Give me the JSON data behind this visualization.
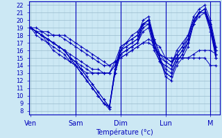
{
  "xlabel": "Température (°c)",
  "bg_color": "#cce8f4",
  "line_color": "#0000bb",
  "grid_major_color": "#99bbcc",
  "grid_minor_color": "#aaccdd",
  "ylim": [
    7.5,
    22.5
  ],
  "yticks": [
    8,
    9,
    10,
    11,
    12,
    13,
    14,
    15,
    16,
    17,
    18,
    19,
    20,
    21,
    22
  ],
  "day_labels": [
    "Ven",
    "Sam",
    "Dim",
    "Lun",
    "M"
  ],
  "day_positions": [
    0,
    24,
    48,
    72,
    96
  ],
  "xlim": [
    -1,
    101
  ],
  "series": [
    {
      "x": [
        0,
        3,
        6,
        9,
        12,
        15,
        18,
        21,
        24,
        27,
        30,
        33,
        36,
        39,
        42,
        45,
        48,
        51,
        54,
        57,
        60,
        63,
        66,
        69,
        72,
        75,
        78,
        81,
        84,
        87,
        90,
        93,
        96,
        99
      ],
      "y": [
        19,
        18.5,
        18,
        17.5,
        17,
        16.5,
        16,
        15,
        14,
        13,
        12,
        11,
        10,
        9,
        8.2,
        13,
        15.5,
        16,
        16.5,
        17,
        19.5,
        20,
        17,
        15,
        13.5,
        13,
        15,
        16,
        17.5,
        20,
        21,
        21.5,
        19,
        15.5
      ]
    },
    {
      "x": [
        0,
        3,
        6,
        9,
        12,
        15,
        18,
        21,
        24,
        27,
        30,
        33,
        36,
        39,
        42,
        45,
        48,
        51,
        54,
        57,
        60,
        63,
        66,
        69,
        72,
        75,
        78,
        81,
        84,
        87,
        90,
        93,
        96,
        99
      ],
      "y": [
        19,
        18.5,
        18,
        17.5,
        17,
        16.5,
        16,
        15,
        14.5,
        13.5,
        12.5,
        11.5,
        10.5,
        9.5,
        8.5,
        13,
        15.5,
        16,
        16.5,
        17,
        19,
        19.5,
        16.5,
        14.5,
        13,
        12.5,
        14.5,
        15.5,
        17,
        19.5,
        20.5,
        21,
        18.5,
        15
      ]
    },
    {
      "x": [
        0,
        3,
        6,
        9,
        12,
        15,
        18,
        21,
        24,
        27,
        30,
        33,
        36,
        39,
        42,
        45,
        48,
        51,
        54,
        57,
        60,
        63,
        66,
        69,
        72,
        75,
        78,
        81,
        84,
        87,
        90,
        93,
        96,
        99
      ],
      "y": [
        19,
        18,
        17.5,
        17,
        16.5,
        16,
        15.5,
        14.5,
        14,
        13,
        12,
        11,
        10,
        9,
        8.5,
        13.5,
        16,
        16.5,
        17,
        17.5,
        19.5,
        20,
        17,
        15,
        13,
        12.5,
        14.5,
        15.5,
        17,
        19.5,
        21,
        21,
        19,
        15.5
      ]
    },
    {
      "x": [
        0,
        3,
        6,
        9,
        12,
        15,
        18,
        21,
        24,
        27,
        30,
        33,
        36,
        39,
        42,
        45,
        48,
        51,
        54,
        57,
        60,
        63,
        66,
        69,
        72,
        75,
        78,
        81,
        84,
        87,
        90,
        93,
        96,
        99
      ],
      "y": [
        19,
        18.5,
        18,
        17.5,
        17,
        16.5,
        16,
        15.5,
        15,
        14.5,
        14,
        13.5,
        13.5,
        13,
        13,
        14,
        16,
        17,
        17.5,
        18,
        19.5,
        20,
        17.5,
        15.5,
        15,
        14.5,
        15.5,
        16.5,
        17.5,
        20,
        21,
        21.5,
        19.5,
        16
      ]
    },
    {
      "x": [
        0,
        3,
        6,
        9,
        12,
        15,
        18,
        21,
        24,
        27,
        30,
        33,
        36,
        39,
        42,
        45,
        48,
        51,
        54,
        57,
        60,
        63,
        66,
        69,
        72,
        75,
        78,
        81,
        84,
        87,
        90,
        93,
        96,
        99
      ],
      "y": [
        19,
        18.5,
        18,
        17.5,
        17,
        16.5,
        16,
        15,
        14.5,
        13.5,
        12.5,
        11.5,
        10.5,
        9.5,
        8.5,
        13.5,
        16.5,
        17,
        17.5,
        18,
        20,
        20.5,
        17.5,
        15.5,
        14.5,
        14,
        16,
        17,
        18,
        20.5,
        21.5,
        22,
        20,
        16.5
      ]
    },
    {
      "x": [
        0,
        3,
        6,
        9,
        12,
        15,
        18,
        21,
        24,
        27,
        30,
        33,
        36,
        39,
        42,
        45,
        48,
        51,
        54,
        57,
        60,
        63,
        66,
        69,
        72,
        75,
        78,
        81,
        84,
        87,
        90,
        93,
        96,
        99
      ],
      "y": [
        19,
        19,
        18.5,
        18,
        18,
        18,
        18,
        17.5,
        17,
        16.5,
        16,
        15.5,
        15,
        14.5,
        14,
        14.5,
        15,
        15.5,
        16,
        16.5,
        17,
        17.5,
        17,
        16.5,
        15,
        15,
        15,
        15,
        15,
        15.5,
        16,
        16,
        16,
        15.5
      ]
    },
    {
      "x": [
        0,
        3,
        6,
        9,
        12,
        15,
        18,
        21,
        24,
        27,
        30,
        33,
        36,
        39,
        42,
        45,
        48,
        51,
        54,
        57,
        60,
        63,
        66,
        69,
        72,
        75,
        78,
        81,
        84,
        87,
        90,
        93,
        96,
        99
      ],
      "y": [
        19,
        18.5,
        18,
        17.5,
        17,
        16.5,
        16,
        15,
        14.5,
        14,
        13.5,
        13,
        13,
        13,
        13,
        14,
        15.5,
        16,
        16.5,
        17,
        18.5,
        19,
        16,
        14.5,
        14,
        13.5,
        15,
        16,
        17,
        19.5,
        21,
        21.5,
        19.5,
        16
      ]
    },
    {
      "x": [
        0,
        3,
        6,
        9,
        12,
        15,
        18,
        21,
        24,
        27,
        30,
        33,
        36,
        39,
        42,
        45,
        48,
        51,
        54,
        57,
        60,
        63,
        66,
        69,
        72,
        75,
        78,
        81,
        84,
        87,
        90,
        93,
        96,
        99
      ],
      "y": [
        19,
        18.5,
        18,
        17,
        16,
        15.5,
        15,
        14.5,
        14,
        13.5,
        13,
        13,
        13,
        13,
        13,
        14.5,
        16.5,
        17,
        18,
        18.5,
        19.5,
        19.5,
        16.5,
        15,
        14.5,
        14,
        15.5,
        16.5,
        18,
        20,
        21,
        21,
        19.5,
        16
      ]
    },
    {
      "x": [
        0,
        3,
        6,
        9,
        12,
        15,
        18,
        21,
        24,
        27,
        30,
        33,
        36,
        39,
        42,
        45,
        48,
        51,
        54,
        57,
        60,
        63,
        66,
        69,
        72,
        75,
        78,
        81,
        84,
        87,
        90,
        93,
        96,
        99
      ],
      "y": [
        19,
        18.5,
        18.5,
        18.5,
        18,
        18,
        17.5,
        17,
        16.5,
        16,
        15.5,
        15,
        14.5,
        14,
        14,
        14.5,
        15,
        15.5,
        16,
        16.5,
        17,
        17,
        16.5,
        15.5,
        15,
        14.5,
        15,
        15,
        15,
        15,
        15,
        15,
        14,
        14
      ]
    },
    {
      "x": [
        0,
        3,
        6,
        9,
        12,
        15,
        18,
        21,
        24,
        27,
        30,
        33,
        36,
        39,
        42,
        45,
        48,
        51,
        54,
        57,
        60,
        63,
        66,
        69,
        72,
        75,
        78,
        81,
        84,
        87,
        90,
        93,
        96,
        99
      ],
      "y": [
        19,
        18.5,
        18,
        17.5,
        17,
        16.5,
        16,
        15,
        14,
        13,
        12,
        11,
        10,
        9,
        8.5,
        13,
        16,
        16.5,
        17,
        17.5,
        19.5,
        20,
        16.5,
        15,
        12.5,
        12,
        14,
        15,
        16.5,
        19.5,
        21,
        21,
        19,
        15
      ]
    }
  ]
}
